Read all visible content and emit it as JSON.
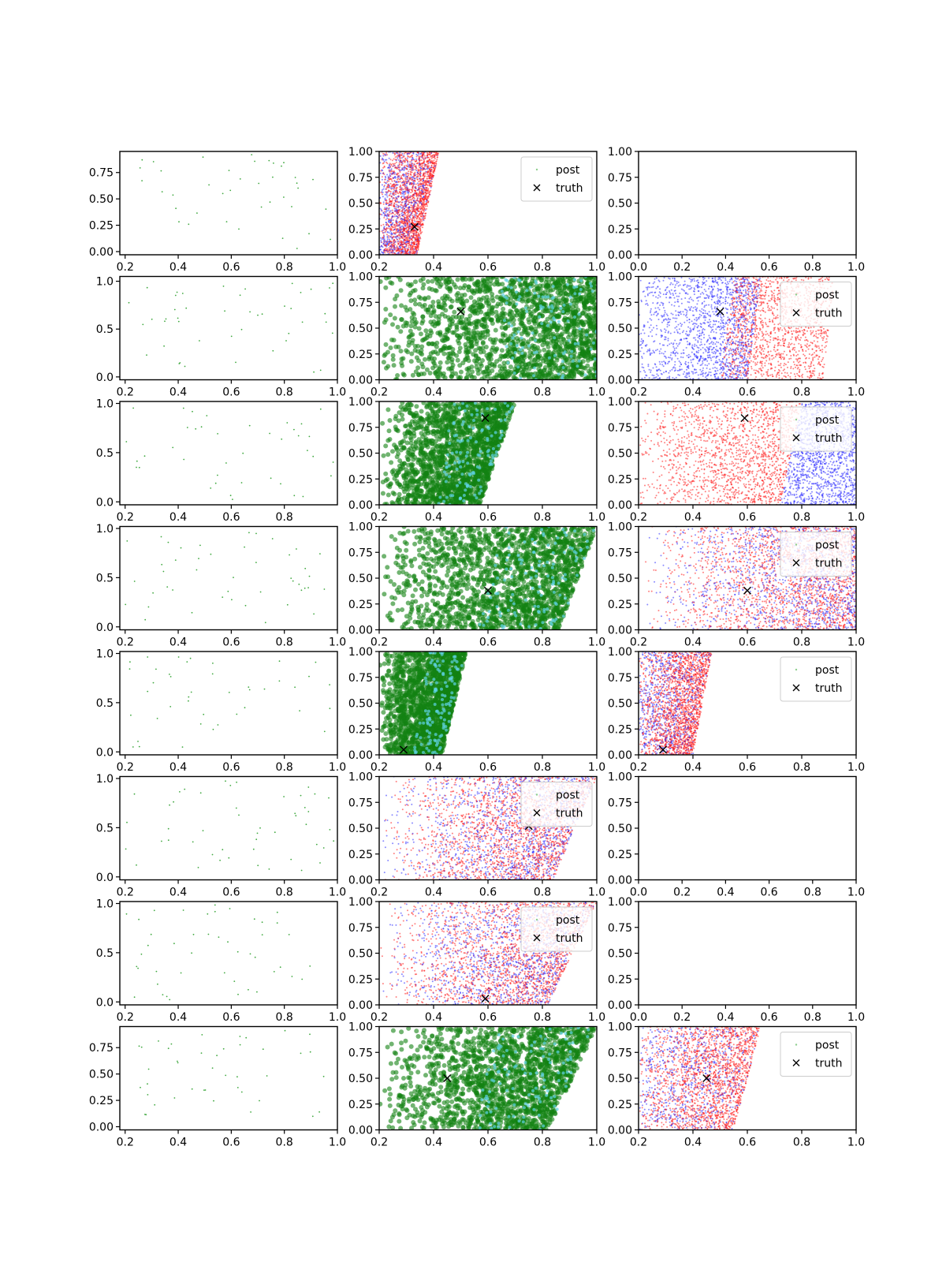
{
  "chart_data": {
    "type": "scatter",
    "layout": "8x3 grid of scatter panels",
    "legend": {
      "entries": [
        "post",
        "truth"
      ],
      "placement": "top-right"
    },
    "colors": {
      "sparse": "#2ca02c",
      "green": "#128212",
      "cyan": "#5fd3e6",
      "red": "#ff1a1a",
      "blue": "#2a2aff",
      "truth": "#000000"
    },
    "panels": [
      {
        "row": 0,
        "col": 0,
        "kind": "sparse",
        "xlim": [
          0.18,
          1.0
        ],
        "ylim": [
          -0.03,
          0.95
        ],
        "xticks": [
          "0.2",
          "0.4",
          "0.6",
          "0.8",
          "1.0"
        ],
        "yticks": [
          "0.00",
          "0.25",
          "0.50",
          "0.75"
        ],
        "n": 40,
        "seed": 11
      },
      {
        "row": 0,
        "col": 1,
        "kind": "redblue",
        "xlim": [
          0.2,
          1.0
        ],
        "ylim": [
          0.0,
          1.0
        ],
        "xticks": [
          "0.2",
          "0.4",
          "0.6",
          "0.8",
          "1.0"
        ],
        "yticks": [
          "0.00",
          "0.25",
          "0.50",
          "0.75",
          "1.00"
        ],
        "legend": true,
        "truth": [
          0.33,
          0.27
        ],
        "region": {
          "x0": 0.2,
          "top": 0.42,
          "bottom": 0.34
        },
        "seed": 21
      },
      {
        "row": 0,
        "col": 2,
        "kind": "empty",
        "xlim": [
          0.0,
          1.0
        ],
        "ylim": [
          0.0,
          1.0
        ],
        "xticks": [
          "0.0",
          "0.2",
          "0.4",
          "0.6",
          "0.8",
          "1.0"
        ],
        "yticks": [
          "0.00",
          "0.25",
          "0.50",
          "0.75",
          "1.00"
        ]
      },
      {
        "row": 1,
        "col": 0,
        "kind": "sparse",
        "xlim": [
          0.18,
          1.0
        ],
        "ylim": [
          -0.03,
          1.05
        ],
        "xticks": [
          "0.2",
          "0.4",
          "0.6",
          "0.8",
          "1.0"
        ],
        "yticks": [
          "0.0",
          "0.5",
          "1.0"
        ],
        "n": 45,
        "seed": 12
      },
      {
        "row": 1,
        "col": 1,
        "kind": "green",
        "xlim": [
          0.2,
          1.0
        ],
        "ylim": [
          0.0,
          1.0
        ],
        "xticks": [
          "0.2",
          "0.4",
          "0.6",
          "0.8",
          "1.0"
        ],
        "yticks": [
          "0.00",
          "0.25",
          "0.50",
          "0.75",
          "1.00"
        ],
        "truth": [
          0.5,
          0.66
        ],
        "region": {
          "x0": 0.2,
          "top": 1.0,
          "bottom": 1.0
        },
        "seed": 31
      },
      {
        "row": 1,
        "col": 2,
        "kind": "redblue2",
        "xlim": [
          0.2,
          1.0
        ],
        "ylim": [
          0.0,
          1.0
        ],
        "xticks": [
          "0.2",
          "0.4",
          "0.6",
          "0.8",
          "1.0"
        ],
        "yticks": [
          "0.00",
          "0.25",
          "0.50",
          "0.75",
          "1.00"
        ],
        "legend": true,
        "truth": [
          0.5,
          0.66
        ],
        "region": {
          "x0": 0.2,
          "top": 0.92,
          "bottom": 0.88,
          "split_top": 0.6,
          "split_bottom": 0.55
        },
        "seed": 41
      },
      {
        "row": 2,
        "col": 0,
        "kind": "sparse",
        "xlim": [
          0.18,
          1.0
        ],
        "ylim": [
          -0.03,
          1.02
        ],
        "xticks": [
          "0.2",
          "0.4",
          "0.6",
          "0.8"
        ],
        "yticks": [
          "0.0",
          "0.5",
          "1.0"
        ],
        "n": 40,
        "seed": 13
      },
      {
        "row": 2,
        "col": 1,
        "kind": "green",
        "xlim": [
          0.2,
          1.0
        ],
        "ylim": [
          0.0,
          1.0
        ],
        "xticks": [
          "0.2",
          "0.4",
          "0.6",
          "0.8",
          "1.0"
        ],
        "yticks": [
          "0.00",
          "0.25",
          "0.50",
          "0.75",
          "1.00"
        ],
        "truth": [
          0.59,
          0.84
        ],
        "region": {
          "x0": 0.2,
          "top": 0.7,
          "bottom": 0.57
        },
        "seed": 32
      },
      {
        "row": 2,
        "col": 2,
        "kind": "redright",
        "xlim": [
          0.2,
          1.0
        ],
        "ylim": [
          0.0,
          1.0
        ],
        "xticks": [
          "0.2",
          "0.4",
          "0.6",
          "0.8",
          "1.0"
        ],
        "yticks": [
          "0.00",
          "0.25",
          "0.50",
          "0.75",
          "1.00"
        ],
        "legend": true,
        "truth": [
          0.59,
          0.84
        ],
        "region": {
          "x0": 0.2,
          "top": 0.8,
          "bottom": 0.72
        },
        "seed": 42
      },
      {
        "row": 3,
        "col": 0,
        "kind": "sparse",
        "xlim": [
          0.18,
          1.0
        ],
        "ylim": [
          -0.03,
          1.02
        ],
        "xticks": [
          "0.2",
          "0.4",
          "0.6",
          "0.8",
          "1.0"
        ],
        "yticks": [
          "0.0",
          "0.5",
          "1.0"
        ],
        "n": 45,
        "seed": 14
      },
      {
        "row": 3,
        "col": 1,
        "kind": "green",
        "xlim": [
          0.2,
          1.0
        ],
        "ylim": [
          0.0,
          1.0
        ],
        "xticks": [
          "0.2",
          "0.4",
          "0.6",
          "0.8",
          "1.0"
        ],
        "yticks": [
          "0.00",
          "0.25",
          "0.50",
          "0.75",
          "1.00"
        ],
        "truth": [
          0.6,
          0.38
        ],
        "region": {
          "x0": 0.2,
          "top": 1.0,
          "bottom": 0.86
        },
        "seed": 33
      },
      {
        "row": 3,
        "col": 2,
        "kind": "redblue3",
        "xlim": [
          0.2,
          1.0
        ],
        "ylim": [
          0.0,
          1.0
        ],
        "xticks": [
          "0.2",
          "0.4",
          "0.6",
          "0.8",
          "1.0"
        ],
        "yticks": [
          "0.00",
          "0.25",
          "0.50",
          "0.75",
          "1.00"
        ],
        "legend": true,
        "truth": [
          0.6,
          0.38
        ],
        "region": {
          "x0": 0.2,
          "top": 1.0,
          "bottom": 1.0
        },
        "seed": 43
      },
      {
        "row": 4,
        "col": 0,
        "kind": "sparse",
        "xlim": [
          0.18,
          1.0
        ],
        "ylim": [
          -0.03,
          1.02
        ],
        "xticks": [
          "0.2",
          "0.4",
          "0.6",
          "0.8",
          "1.0"
        ],
        "yticks": [
          "0.0",
          "0.5",
          "1.0"
        ],
        "n": 42,
        "seed": 15
      },
      {
        "row": 4,
        "col": 1,
        "kind": "green",
        "xlim": [
          0.2,
          1.0
        ],
        "ylim": [
          0.0,
          1.0
        ],
        "xticks": [
          "0.2",
          "0.4",
          "0.6",
          "0.8",
          "1.0"
        ],
        "yticks": [
          "0.00",
          "0.25",
          "0.50",
          "0.75",
          "1.00"
        ],
        "truth": [
          0.29,
          0.05
        ],
        "region": {
          "x0": 0.2,
          "top": 0.52,
          "bottom": 0.43
        },
        "seed": 34
      },
      {
        "row": 4,
        "col": 2,
        "kind": "redblue",
        "xlim": [
          0.2,
          1.0
        ],
        "ylim": [
          0.0,
          1.0
        ],
        "xticks": [
          "0.2",
          "0.4",
          "0.6",
          "0.8",
          "1.0"
        ],
        "yticks": [
          "0.00",
          "0.25",
          "0.50",
          "0.75",
          "1.00"
        ],
        "legend": true,
        "truth": [
          0.29,
          0.05
        ],
        "region": {
          "x0": 0.2,
          "top": 0.47,
          "bottom": 0.4
        },
        "seed": 44
      },
      {
        "row": 5,
        "col": 0,
        "kind": "sparse",
        "xlim": [
          0.18,
          1.0
        ],
        "ylim": [
          -0.03,
          1.02
        ],
        "xticks": [
          "0.2",
          "0.4",
          "0.6",
          "0.8",
          "1.0"
        ],
        "yticks": [
          "0.0",
          "0.5",
          "1.0"
        ],
        "n": 48,
        "seed": 16
      },
      {
        "row": 5,
        "col": 1,
        "kind": "redblue3",
        "xlim": [
          0.2,
          1.0
        ],
        "ylim": [
          0.0,
          1.0
        ],
        "xticks": [
          "0.2",
          "0.4",
          "0.6",
          "0.8",
          "1.0"
        ],
        "yticks": [
          "0.00",
          "0.25",
          "0.50",
          "0.75",
          "1.00"
        ],
        "legend": true,
        "truth": [
          0.75,
          0.52
        ],
        "region": {
          "x0": 0.2,
          "top": 1.0,
          "bottom": 0.84
        },
        "seed": 22
      },
      {
        "row": 5,
        "col": 2,
        "kind": "empty",
        "xlim": [
          0.0,
          1.0
        ],
        "ylim": [
          0.0,
          1.0
        ],
        "xticks": [
          "0.0",
          "0.2",
          "0.4",
          "0.6",
          "0.8",
          "1.0"
        ],
        "yticks": [
          "0.00",
          "0.25",
          "0.50",
          "0.75",
          "1.00"
        ]
      },
      {
        "row": 6,
        "col": 0,
        "kind": "sparse",
        "xlim": [
          0.18,
          1.0
        ],
        "ylim": [
          -0.03,
          1.02
        ],
        "xticks": [
          "0.2",
          "0.4",
          "0.6",
          "0.8",
          "1.0"
        ],
        "yticks": [
          "0.0",
          "0.5",
          "1.0"
        ],
        "n": 45,
        "seed": 17
      },
      {
        "row": 6,
        "col": 1,
        "kind": "redblue3",
        "xlim": [
          0.2,
          1.0
        ],
        "ylim": [
          0.0,
          1.0
        ],
        "xticks": [
          "0.2",
          "0.4",
          "0.6",
          "0.8",
          "1.0"
        ],
        "yticks": [
          "0.00",
          "0.25",
          "0.50",
          "0.75",
          "1.00"
        ],
        "legend": true,
        "truth": [
          0.59,
          0.06
        ],
        "region": {
          "x0": 0.2,
          "top": 1.0,
          "bottom": 0.82
        },
        "seed": 23
      },
      {
        "row": 6,
        "col": 2,
        "kind": "empty",
        "xlim": [
          0.0,
          1.0
        ],
        "ylim": [
          0.0,
          1.0
        ],
        "xticks": [
          "0.0",
          "0.2",
          "0.4",
          "0.6",
          "0.8",
          "1.0"
        ],
        "yticks": [
          "0.00",
          "0.25",
          "0.50",
          "0.75",
          "1.00"
        ]
      },
      {
        "row": 7,
        "col": 0,
        "kind": "sparse",
        "xlim": [
          0.18,
          1.0
        ],
        "ylim": [
          -0.03,
          0.95
        ],
        "xticks": [
          "0.2",
          "0.4",
          "0.6",
          "0.8",
          "1.0"
        ],
        "yticks": [
          "0.00",
          "0.25",
          "0.50",
          "0.75"
        ],
        "n": 42,
        "seed": 18
      },
      {
        "row": 7,
        "col": 1,
        "kind": "green",
        "xlim": [
          0.2,
          1.0
        ],
        "ylim": [
          0.0,
          1.0
        ],
        "xticks": [
          "0.2",
          "0.4",
          "0.6",
          "0.8",
          "1.0"
        ],
        "yticks": [
          "0.00",
          "0.25",
          "0.50",
          "0.75",
          "1.00"
        ],
        "truth": [
          0.45,
          0.5
        ],
        "region": {
          "x0": 0.2,
          "top": 1.0,
          "bottom": 0.82
        },
        "seed": 35
      },
      {
        "row": 7,
        "col": 2,
        "kind": "redblue",
        "xlim": [
          0.2,
          1.0
        ],
        "ylim": [
          0.0,
          1.0
        ],
        "xticks": [
          "0.2",
          "0.4",
          "0.6",
          "0.8",
          "1.0"
        ],
        "yticks": [
          "0.00",
          "0.25",
          "0.50",
          "0.75",
          "1.00"
        ],
        "legend": true,
        "truth": [
          0.45,
          0.5
        ],
        "region": {
          "x0": 0.2,
          "top": 0.65,
          "bottom": 0.55
        },
        "seed": 45
      }
    ]
  }
}
